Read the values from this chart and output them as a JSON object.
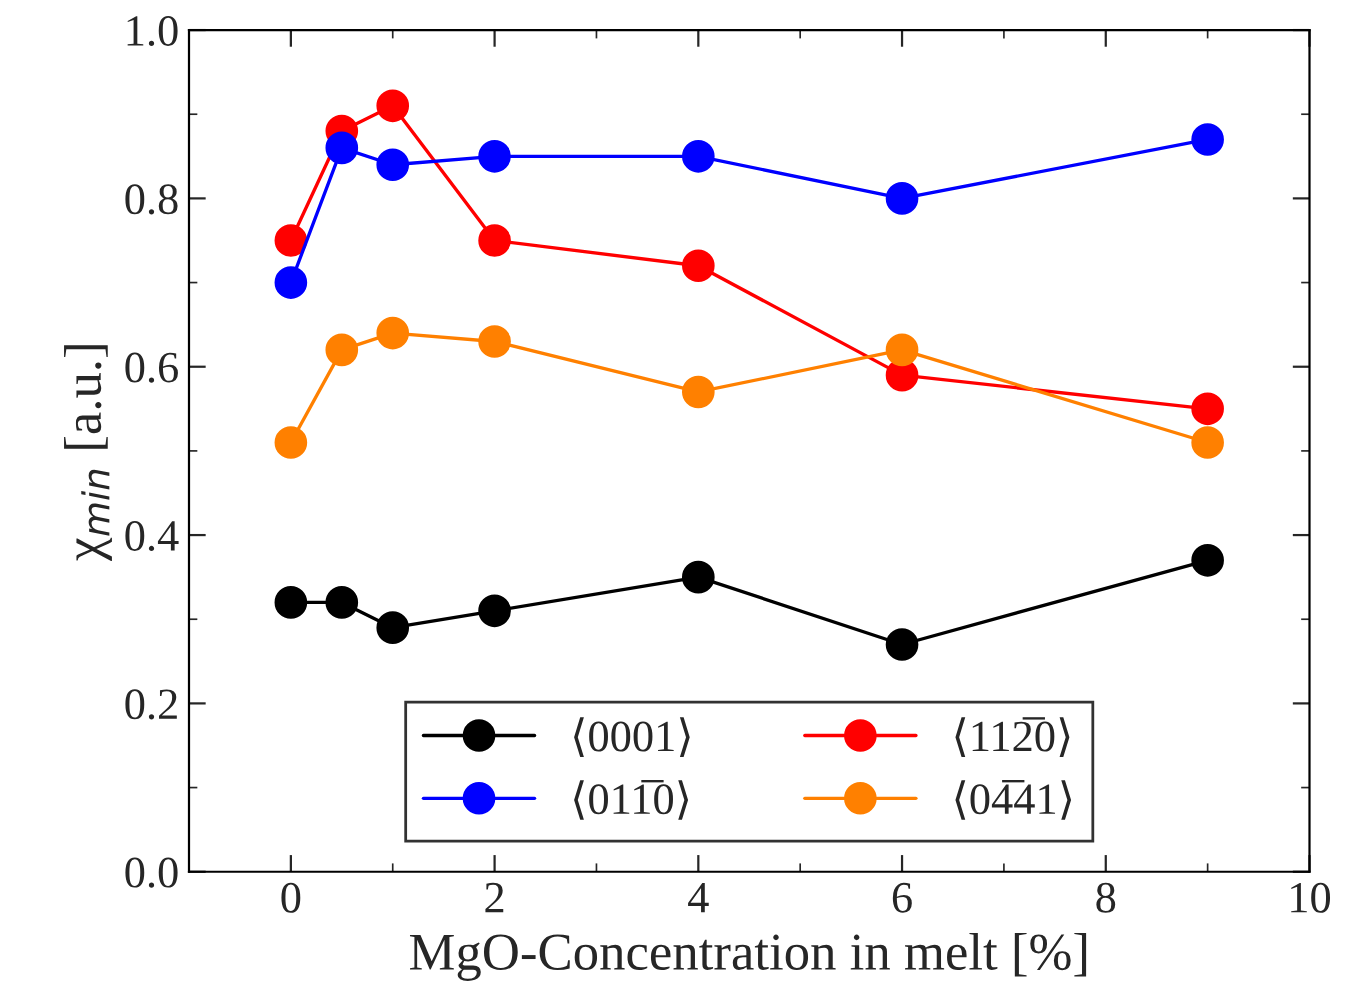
{
  "chart_data": {
    "type": "line",
    "xlabel": "MgO-Concentration in melt [%]",
    "ylabel": "χ$_{min}$ [a.u.]",
    "x": [
      0,
      0.5,
      1,
      2,
      4,
      6,
      9
    ],
    "series": [
      {
        "name": "⟨0001⟩",
        "color": "#000000",
        "values": [
          0.32,
          0.32,
          0.29,
          0.31,
          0.35,
          0.27,
          0.37
        ]
      },
      {
        "name": "⟨112̅0⟩",
        "color": "#ff0000",
        "values": [
          0.75,
          0.88,
          0.91,
          0.75,
          0.72,
          0.59,
          0.55
        ]
      },
      {
        "name": "⟨011̅0⟩",
        "color": "#0000ff",
        "values": [
          0.7,
          0.86,
          0.84,
          0.85,
          0.85,
          0.8,
          0.87
        ]
      },
      {
        "name": "⟨04̅41⟩",
        "color": "#ff8000",
        "values": [
          0.51,
          0.62,
          0.64,
          0.63,
          0.57,
          0.62,
          0.51
        ]
      }
    ],
    "xlim": [
      -1,
      10
    ],
    "xticks": [
      0,
      2,
      4,
      6,
      8,
      10
    ],
    "ylim": [
      0,
      1
    ],
    "yticks": [
      {
        "value": 0,
        "label": "0.0"
      },
      {
        "value": 0.2,
        "label": "0.2"
      },
      {
        "value": 0.4,
        "label": "0.4"
      },
      {
        "value": 0.6,
        "label": "0.6"
      },
      {
        "value": 0.8,
        "label": "0.8"
      },
      {
        "value": 1,
        "label": "1.0"
      }
    ],
    "grid": false,
    "legend": "bottom",
    "marker": "circle",
    "line_style": "solid"
  }
}
